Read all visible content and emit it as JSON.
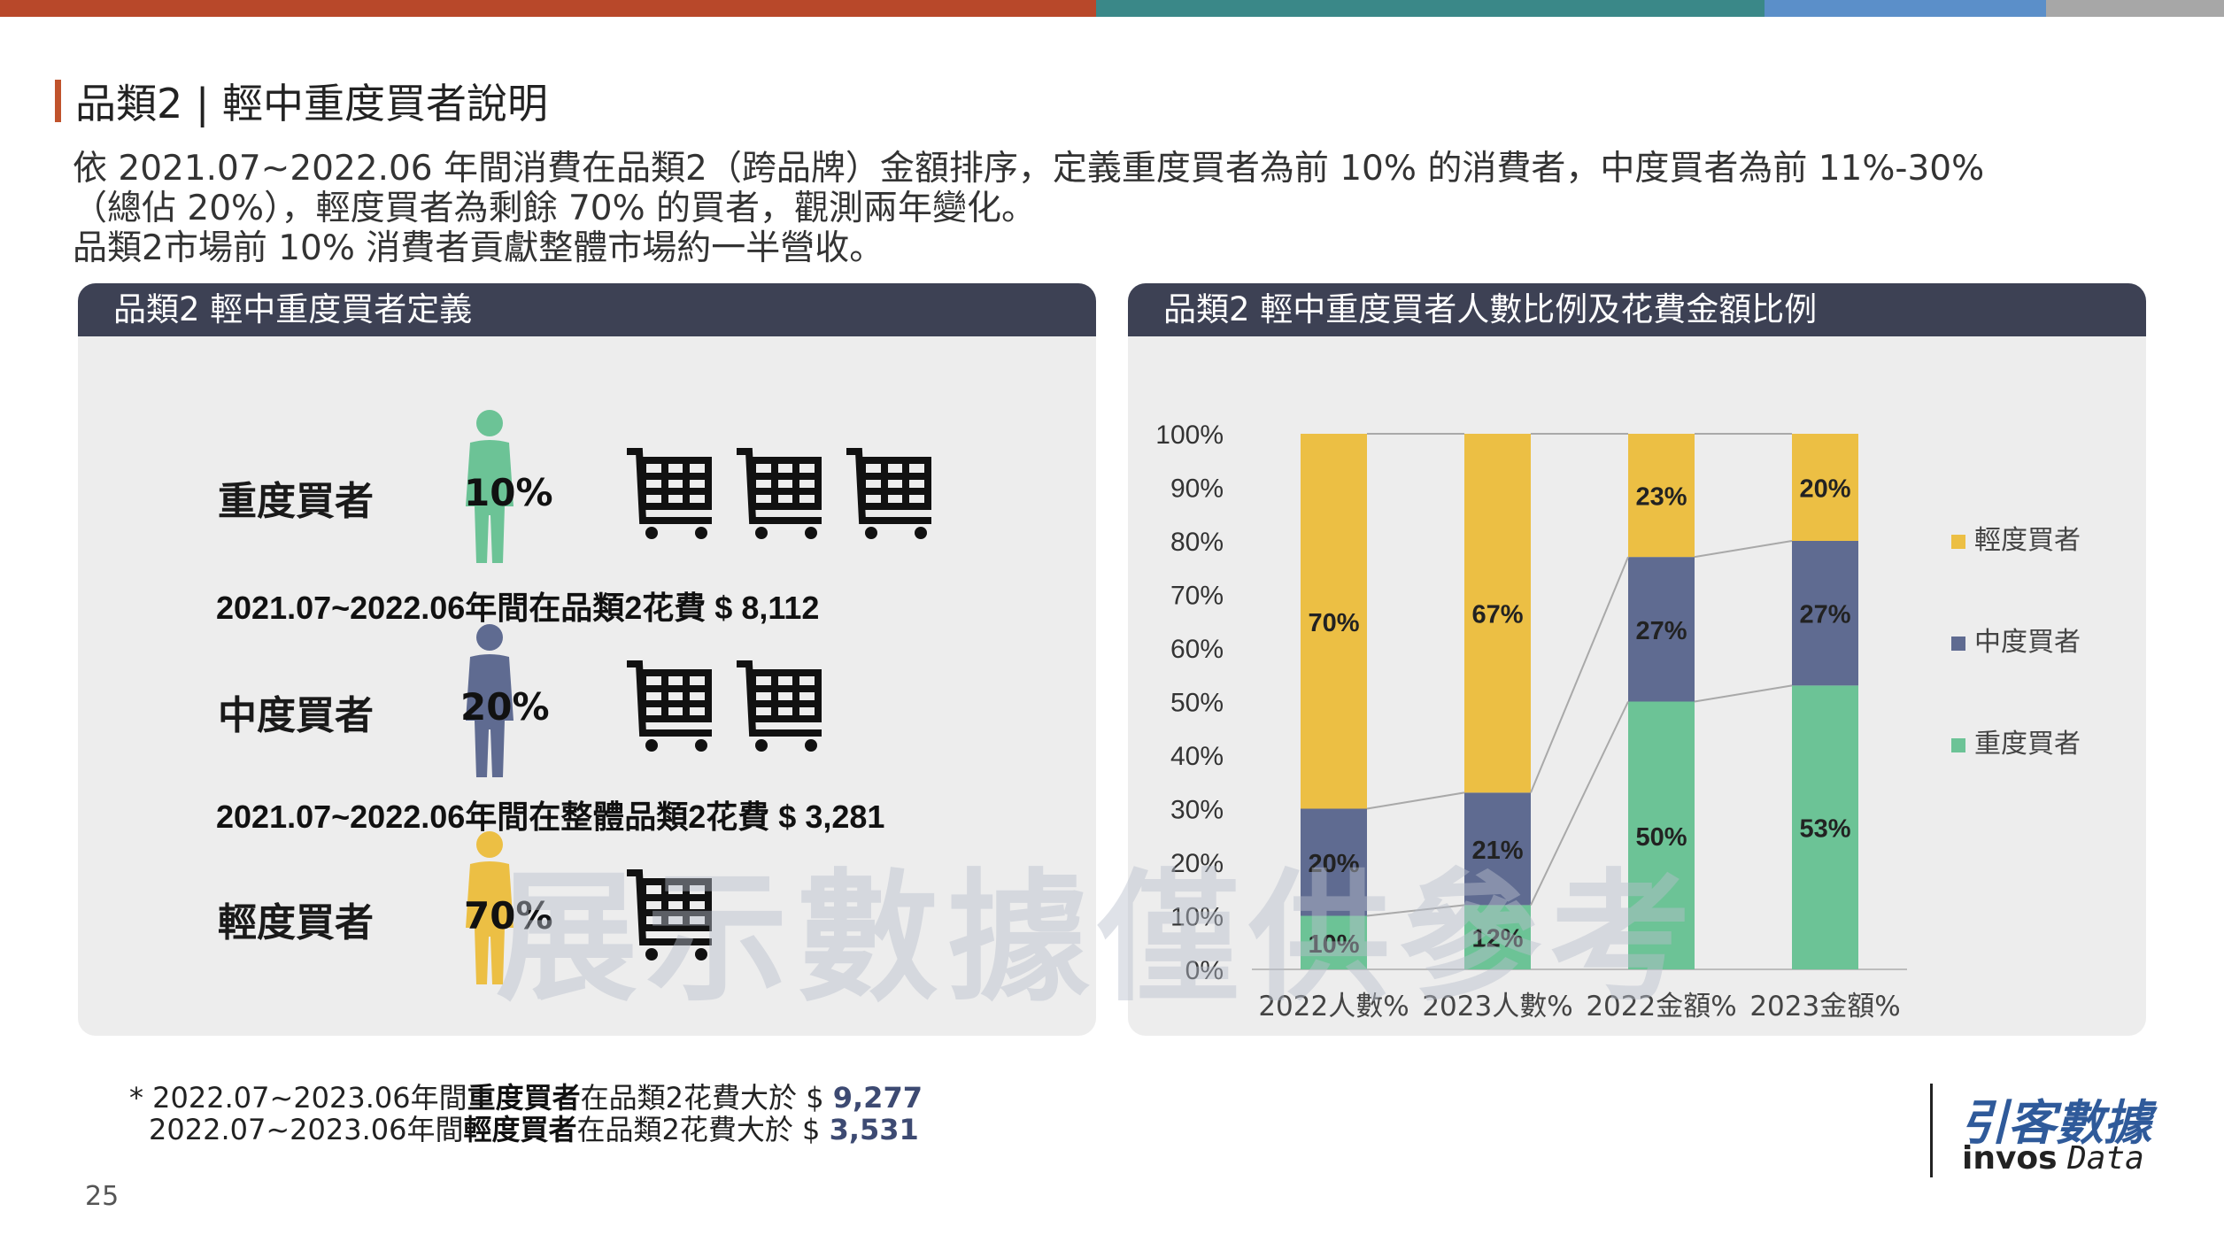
{
  "colors": {
    "bar1": "#b8482a",
    "bar2": "#3a8888",
    "bar3": "#5b8fc9",
    "bar4": "#a7a7a7",
    "heavy": "#6cc396",
    "medium": "#5f6b91",
    "light": "#ecbf44",
    "panel_header": "#3d4154",
    "title_mark": "#c0532c"
  },
  "page": {
    "title": "品類2 | 輕中重度買者說明",
    "desc": [
      "依 2021.07~2022.06 年間消費在品類2（跨品牌）金額排序，定義重度買者為前 10% 的消費者，中度買者為前 11%-30%",
      "（總佔 20%），輕度買者為剩餘 70% 的買者，觀測兩年變化。",
      "品類2市場前 10% 消費者貢獻整體市場約一半營收。"
    ],
    "page_number": "25",
    "watermark": "展示數據僅供參考"
  },
  "left_panel": {
    "title": "品類2 輕中重度買者定義",
    "rows": [
      {
        "label": "重度買者",
        "pct": "10%",
        "icon": "person-icon",
        "carts": 3,
        "note": "2021.07~2022.06年間在品類2花費 $ 8,112"
      },
      {
        "label": "中度買者",
        "pct": "20%",
        "icon": "person-icon",
        "carts": 2,
        "note": "2021.07~2022.06年間在整體品類2花費 $ 3,281"
      },
      {
        "label": "輕度買者",
        "pct": "70%",
        "icon": "person-icon",
        "carts": 1,
        "note": ""
      }
    ]
  },
  "right_panel": {
    "title": "品類2 輕中重度買者人數比例及花費金額比例"
  },
  "chart_data": {
    "type": "bar",
    "stacked": true,
    "categories": [
      "2022人數%",
      "2023人數%",
      "2022金額%",
      "2023金額%"
    ],
    "series": [
      {
        "name": "重度買者",
        "values": [
          10,
          12,
          50,
          53
        ],
        "labels": [
          "10%",
          "12%",
          "50%",
          "53%"
        ]
      },
      {
        "name": "中度買者",
        "values": [
          20,
          21,
          27,
          27
        ],
        "labels": [
          "20%",
          "21%",
          "27%",
          "27%"
        ]
      },
      {
        "name": "輕度買者",
        "values": [
          70,
          67,
          23,
          20
        ],
        "labels": [
          "70%",
          "67%",
          "23%",
          "20%"
        ]
      }
    ],
    "y_ticks": [
      "0%",
      "10%",
      "20%",
      "30%",
      "40%",
      "50%",
      "60%",
      "70%",
      "80%",
      "90%",
      "100%"
    ],
    "ylim": [
      0,
      100
    ],
    "legend": [
      "輕度買者",
      "中度買者",
      "重度買者"
    ],
    "legend_position": "right",
    "series_lines": true,
    "grid": false
  },
  "footnote": {
    "lines": [
      {
        "prefix": "* ",
        "a": "2022.07~2023.06年間",
        "b": "重度買者",
        "c": "在品類2花費大於 $ ",
        "v": "9,277"
      },
      {
        "prefix": "",
        "a": "2022.07~2023.06年間",
        "b": "輕度買者",
        "c": "在品類2花費大於 $ ",
        "v": "3,531"
      }
    ]
  },
  "logo": {
    "cn": "引客數據",
    "en_bold": "invos",
    "en_italic": "Data"
  }
}
